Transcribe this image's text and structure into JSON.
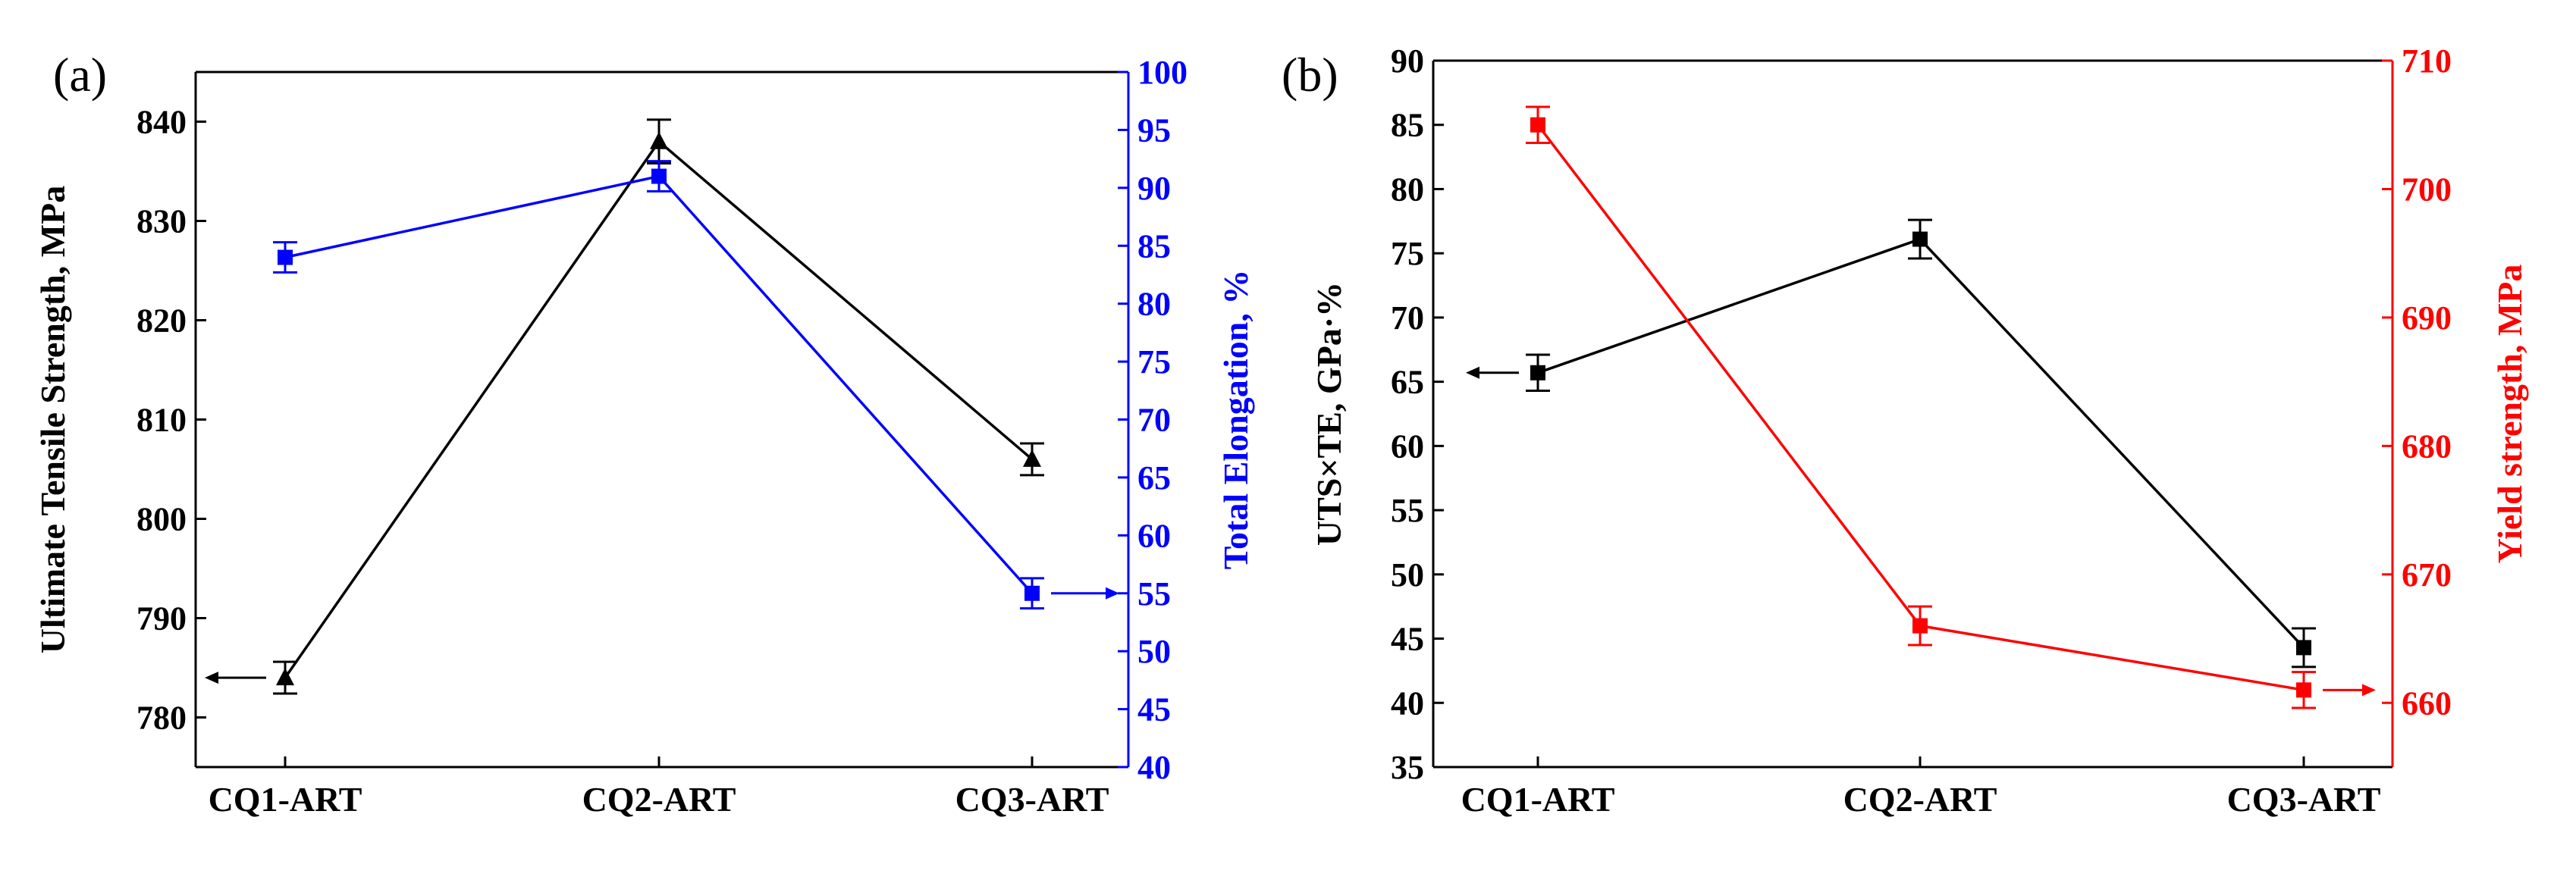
{
  "colors": {
    "black": "#000000",
    "blue": "#0000ff",
    "red": "#ff0000"
  },
  "chart_data": [
    {
      "type": "line",
      "panel_label": "(a)",
      "categories": [
        "CQ1-ART",
        "CQ2-ART",
        "CQ3-ART"
      ],
      "left_axis": {
        "label": "Ultimate Tensile Strength, MPa",
        "range": [
          775,
          845
        ],
        "ticks": [
          780,
          790,
          800,
          810,
          820,
          830,
          840
        ],
        "color": "#000000"
      },
      "right_axis": {
        "label": "Total Elongation, %",
        "range": [
          40,
          100
        ],
        "ticks": [
          40,
          45,
          50,
          55,
          60,
          65,
          70,
          75,
          80,
          85,
          90,
          95,
          100
        ],
        "color": "#0000ff"
      },
      "series": [
        {
          "name": "Ultimate Tensile Strength",
          "axis": "left",
          "marker": "triangle",
          "color": "#000000",
          "values": [
            784,
            838,
            806
          ],
          "errors": [
            1.6,
            2.2,
            1.6
          ]
        },
        {
          "name": "Total Elongation",
          "axis": "right",
          "marker": "square",
          "color": "#0000ff",
          "values": [
            84,
            91,
            55
          ],
          "errors": [
            1.3,
            1.3,
            1.3
          ]
        }
      ],
      "annotations": [
        {
          "text": "left arrow",
          "points_to": "left",
          "series": "Ultimate Tensile Strength",
          "at_category": "CQ1-ART"
        },
        {
          "text": "right arrow",
          "points_to": "right",
          "series": "Total Elongation",
          "at_category": "CQ3-ART"
        }
      ]
    },
    {
      "type": "line",
      "panel_label": "(b)",
      "categories": [
        "CQ1-ART",
        "CQ2-ART",
        "CQ3-ART"
      ],
      "left_axis": {
        "label": "UTS×TE, GPa·%",
        "range": [
          35,
          90
        ],
        "ticks": [
          35,
          40,
          45,
          50,
          55,
          60,
          65,
          70,
          75,
          80,
          85,
          90
        ],
        "color": "#000000"
      },
      "right_axis": {
        "label": "Yield strength, MPa",
        "range": [
          655,
          710
        ],
        "ticks": [
          660,
          670,
          680,
          690,
          700,
          710
        ],
        "color": "#ff0000"
      },
      "series": [
        {
          "name": "UTS×TE",
          "axis": "left",
          "marker": "square",
          "color": "#000000",
          "values": [
            65.7,
            76.1,
            44.3
          ],
          "errors": [
            1.4,
            1.5,
            1.5
          ]
        },
        {
          "name": "Yield strength",
          "axis": "right",
          "marker": "square",
          "color": "#ff0000",
          "values": [
            705,
            666,
            661
          ],
          "errors": [
            1.4,
            1.5,
            1.4
          ]
        }
      ],
      "annotations": [
        {
          "text": "left arrow",
          "points_to": "left",
          "series": "UTS×TE",
          "at_category": "CQ1-ART"
        },
        {
          "text": "right arrow",
          "points_to": "right",
          "series": "Yield strength",
          "at_category": "CQ3-ART"
        }
      ]
    }
  ]
}
